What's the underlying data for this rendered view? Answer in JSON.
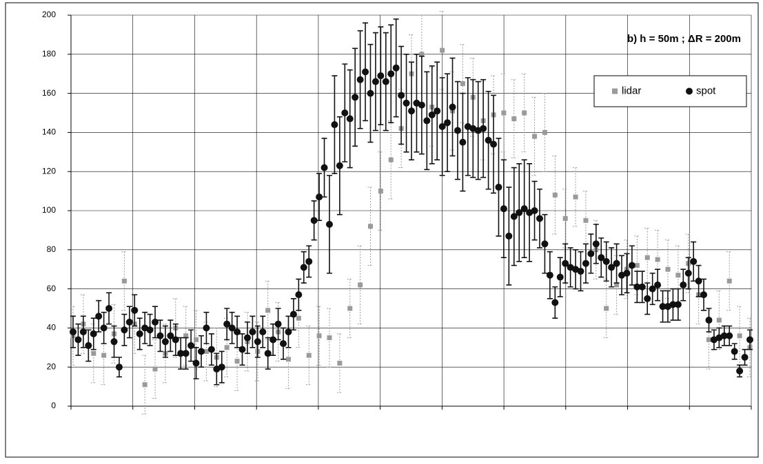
{
  "chart_data": {
    "type": "scatter",
    "title": "b) h = 50m ; ΔR = 200m",
    "ylim": [
      0,
      200
    ],
    "yticks": [
      0,
      20,
      40,
      60,
      80,
      100,
      120,
      140,
      160,
      180,
      200
    ],
    "grid": true,
    "legend": "top-right",
    "series": [
      {
        "name": "lidar",
        "color": "#9a9a9a",
        "marker": "square",
        "values": [
          36,
          42,
          27,
          26,
          37,
          64,
          42,
          11,
          19,
          27,
          40,
          36,
          34,
          28,
          25,
          30,
          23,
          33,
          28,
          49,
          38,
          24,
          45,
          26,
          36,
          35,
          22,
          50,
          62,
          92,
          110,
          126,
          142,
          170,
          180,
          153,
          182,
          151,
          165,
          158,
          146,
          149,
          150,
          147,
          150,
          138,
          140,
          108,
          96,
          107,
          95,
          80,
          50,
          62,
          70,
          72,
          76,
          75,
          70,
          67,
          73,
          57,
          34,
          44,
          64,
          36,
          30
        ],
        "errors": [
          15,
          15,
          15,
          15,
          15,
          15,
          15,
          15,
          15,
          15,
          15,
          15,
          15,
          15,
          15,
          15,
          15,
          15,
          15,
          15,
          15,
          15,
          15,
          15,
          15,
          15,
          15,
          15,
          20,
          20,
          20,
          20,
          20,
          20,
          20,
          20,
          20,
          20,
          20,
          20,
          20,
          20,
          20,
          20,
          20,
          20,
          20,
          20,
          15,
          15,
          15,
          15,
          15,
          15,
          15,
          15,
          15,
          15,
          15,
          15,
          15,
          15,
          15,
          15,
          15,
          15,
          15
        ]
      },
      {
        "name": "spot",
        "color": "#111111",
        "marker": "circle",
        "values": [
          38,
          34,
          38,
          31,
          37,
          46,
          40,
          50,
          33,
          20,
          39,
          43,
          49,
          37,
          40,
          39,
          43,
          36,
          33,
          36,
          34,
          27,
          27,
          31,
          22,
          28,
          40,
          29,
          19,
          20,
          42,
          40,
          38,
          29,
          35,
          38,
          33,
          38,
          27,
          34,
          42,
          32,
          38,
          47,
          57,
          71,
          74,
          95,
          107,
          122,
          93,
          144,
          123,
          150,
          147,
          158,
          167,
          171,
          160,
          166,
          169,
          166,
          170,
          173,
          159,
          155,
          151,
          155,
          154,
          146,
          149,
          151,
          143,
          145,
          153,
          141,
          135,
          143,
          142,
          141,
          142,
          136,
          134,
          112,
          101,
          87,
          97,
          99,
          101,
          99,
          100,
          96,
          83,
          67,
          53,
          66,
          73,
          71,
          70,
          69,
          73,
          78,
          83,
          76,
          74,
          71,
          73,
          67,
          68,
          72,
          61,
          61,
          55,
          60,
          62,
          51,
          51,
          52,
          52,
          62,
          68,
          74,
          64,
          57,
          44,
          34,
          35,
          36,
          36,
          28,
          18,
          25,
          34
        ],
        "errors": [
          8,
          8,
          8,
          8,
          8,
          8,
          8,
          8,
          8,
          5,
          8,
          8,
          8,
          8,
          8,
          8,
          8,
          8,
          8,
          8,
          8,
          8,
          8,
          8,
          8,
          8,
          8,
          8,
          8,
          8,
          8,
          8,
          8,
          8,
          8,
          8,
          8,
          8,
          8,
          8,
          8,
          8,
          8,
          8,
          8,
          8,
          8,
          10,
          12,
          15,
          25,
          25,
          25,
          25,
          25,
          25,
          25,
          25,
          25,
          25,
          25,
          25,
          25,
          25,
          25,
          25,
          25,
          25,
          25,
          25,
          25,
          25,
          25,
          25,
          25,
          25,
          25,
          25,
          25,
          25,
          25,
          25,
          25,
          25,
          25,
          25,
          25,
          25,
          25,
          25,
          15,
          15,
          15,
          12,
          8,
          10,
          10,
          10,
          10,
          10,
          10,
          10,
          10,
          10,
          10,
          10,
          10,
          10,
          10,
          10,
          8,
          8,
          8,
          8,
          8,
          8,
          8,
          8,
          8,
          8,
          8,
          10,
          8,
          8,
          6,
          5,
          5,
          5,
          5,
          4,
          3,
          4,
          5
        ]
      }
    ]
  }
}
